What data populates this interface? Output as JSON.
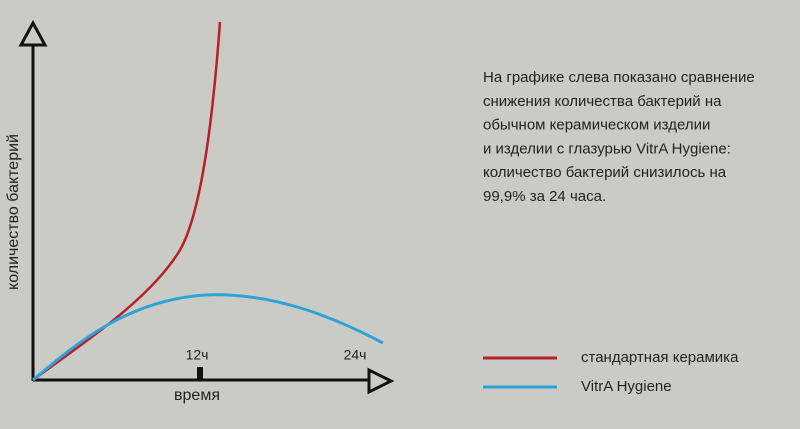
{
  "axis": {
    "y_label": "количество бактерий",
    "x_label": "время",
    "ticks": [
      "12ч",
      "24ч"
    ]
  },
  "description": [
    "На графике слева показано сравнение",
    "снижения количества бактерий на",
    "обычном керамическом изделии",
    "и  изделии с глазурью VitrA Hygiene:",
    "количество бактерий снизилось на",
    "99,9%  за  24  часа."
  ],
  "legend": [
    {
      "name": "стандартная керамика",
      "color": "#b5202a"
    },
    {
      "name": "VitrA Hygiene",
      "color": "#2fa3d8"
    }
  ]
}
